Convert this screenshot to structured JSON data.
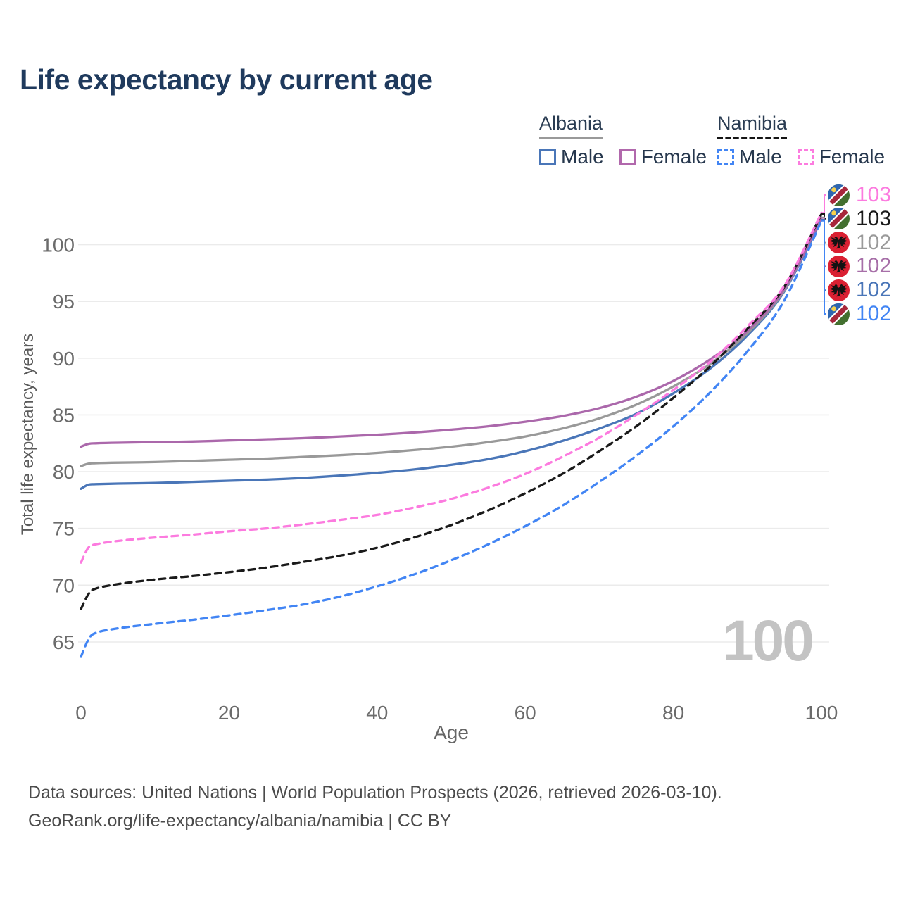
{
  "title": "Life expectancy by current age",
  "legend": {
    "groups": [
      {
        "label": "Albania",
        "line_color": "#999999",
        "line_style": "solid",
        "items": [
          {
            "label": "Male",
            "color": "#4a76b8",
            "style": "solid"
          },
          {
            "label": "Female",
            "color": "#b168ac",
            "style": "solid"
          }
        ]
      },
      {
        "label": "Namibia",
        "line_color": "#151515",
        "line_style": "dashed",
        "items": [
          {
            "label": "Male",
            "color": "#4285f4",
            "style": "dashed"
          },
          {
            "label": "Female",
            "color": "#fc7bdf",
            "style": "dashed"
          }
        ]
      }
    ]
  },
  "chart_data": {
    "type": "line",
    "title": "Life expectancy by current age",
    "xlabel": "Age",
    "ylabel": "Total life expectancy, years",
    "xlim": [
      0,
      100
    ],
    "ylim": [
      63,
      104
    ],
    "x_ticks": [
      0,
      20,
      40,
      60,
      80,
      100
    ],
    "y_ticks": [
      65,
      70,
      75,
      80,
      85,
      90,
      95,
      100
    ],
    "grid": "horizontal",
    "x": [
      0,
      1,
      2,
      5,
      10,
      15,
      20,
      25,
      30,
      35,
      40,
      45,
      50,
      55,
      60,
      65,
      70,
      75,
      80,
      85,
      90,
      95,
      100
    ],
    "series": [
      {
        "name": "Albania Male",
        "country": "Albania",
        "sex": "Male",
        "color": "#4a76b8",
        "dash": "solid",
        "values": [
          78.5,
          78.85,
          78.9,
          78.95,
          79.0,
          79.1,
          79.2,
          79.3,
          79.45,
          79.65,
          79.9,
          80.2,
          80.6,
          81.1,
          81.8,
          82.7,
          83.8,
          85.1,
          86.9,
          89.1,
          92.0,
          95.9,
          102.2
        ]
      },
      {
        "name": "Albania Both sexes",
        "country": "Albania",
        "sex": "Both",
        "color": "#999999",
        "dash": "solid",
        "values": [
          80.5,
          80.7,
          80.75,
          80.8,
          80.85,
          80.95,
          81.05,
          81.15,
          81.3,
          81.45,
          81.65,
          81.9,
          82.2,
          82.6,
          83.1,
          83.8,
          84.7,
          85.9,
          87.5,
          89.5,
          92.2,
          96.0,
          102.4
        ]
      },
      {
        "name": "Albania Female",
        "country": "Albania",
        "sex": "Female",
        "color": "#ab68ab",
        "dash": "solid",
        "values": [
          82.2,
          82.45,
          82.5,
          82.55,
          82.6,
          82.65,
          82.75,
          82.85,
          82.95,
          83.1,
          83.25,
          83.45,
          83.7,
          84.0,
          84.4,
          84.9,
          85.6,
          86.6,
          88.0,
          89.9,
          92.4,
          96.1,
          102.35
        ]
      },
      {
        "name": "Namibia Male",
        "country": "Namibia",
        "sex": "Male",
        "color": "#4285f4",
        "dash": "dashed",
        "values": [
          63.7,
          65.2,
          65.8,
          66.2,
          66.6,
          66.95,
          67.35,
          67.8,
          68.3,
          69.0,
          69.9,
          70.95,
          72.2,
          73.6,
          75.2,
          77.0,
          79.1,
          81.4,
          84.0,
          87.0,
          90.6,
          95.1,
          102.1
        ]
      },
      {
        "name": "Namibia Both sexes",
        "country": "Namibia",
        "sex": "Both",
        "color": "#1a1a1a",
        "dash": "dashed",
        "values": [
          67.9,
          69.2,
          69.7,
          70.1,
          70.5,
          70.8,
          71.15,
          71.55,
          72.05,
          72.6,
          73.3,
          74.2,
          75.3,
          76.6,
          78.1,
          79.8,
          81.8,
          84.0,
          86.5,
          89.3,
          92.6,
          96.3,
          102.7
        ]
      },
      {
        "name": "Namibia Female",
        "country": "Namibia",
        "sex": "Female",
        "color": "#fc7bdf",
        "dash": "dashed",
        "values": [
          72.0,
          73.3,
          73.6,
          73.9,
          74.2,
          74.45,
          74.75,
          75.0,
          75.35,
          75.75,
          76.2,
          76.85,
          77.6,
          78.6,
          79.8,
          81.3,
          83.0,
          85.0,
          87.2,
          89.7,
          92.8,
          96.4,
          102.8
        ]
      }
    ],
    "end_labels": [
      {
        "text": "103",
        "flag": "namibia",
        "color": "#fc7bdf",
        "series": "Namibia Female"
      },
      {
        "text": "103",
        "flag": "namibia",
        "color": "#1a1a1a",
        "series": "Namibia Both sexes"
      },
      {
        "text": "102",
        "flag": "albania",
        "color": "#9a9a9a",
        "series": "Albania Both sexes"
      },
      {
        "text": "102",
        "flag": "albania",
        "color": "#a76fa8",
        "series": "Albania Female"
      },
      {
        "text": "102",
        "flag": "albania",
        "color": "#4a76b8",
        "series": "Albania Male"
      },
      {
        "text": "102",
        "flag": "namibia",
        "color": "#4285f4",
        "series": "Namibia Male"
      }
    ],
    "watermark": "100"
  },
  "footer": {
    "line1": "Data sources: United Nations | World Population Prospects (2026, retrieved 2026-03-10).",
    "line2": "GeoRank.org/life-expectancy/albania/namibia | CC BY"
  }
}
